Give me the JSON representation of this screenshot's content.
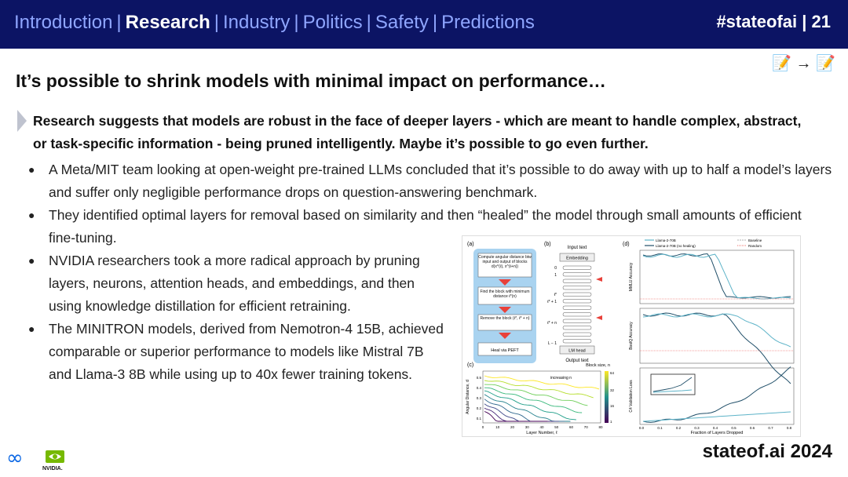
{
  "header": {
    "nav": [
      {
        "label": "Introduction",
        "active": false
      },
      {
        "label": "Research",
        "active": true
      },
      {
        "label": "Industry",
        "active": false
      },
      {
        "label": "Politics",
        "active": false
      },
      {
        "label": "Safety",
        "active": false
      },
      {
        "label": "Predictions",
        "active": false
      }
    ],
    "tag": "#stateofai | 21",
    "stamp": "📝 → 📝"
  },
  "slide": {
    "title": "It’s possible to shrink models with minimal impact on performance…",
    "summary": "Research suggests that models are robust in the face of deeper layers - which are meant to handle complex, abstract, or task-specific information - being pruned intelligently. Maybe it’s possible to go even further.",
    "bullets": [
      "A Meta/MIT team looking at open-weight pre-trained LLMs concluded that it’s possible to do away with up to half a model’s layers and suffer only negligible performance drops on question-answering benchmark.",
      "They identified optimal layers for removal based on similarity and then “healed” the model through small amounts of efficient fine-tuning.",
      "NVIDIA researchers took a more radical approach by pruning layers, neurons, attention heads, and embeddings, and then using knowledge distillation for efficient retraining.",
      "The MINITRON models, derived from Nemotron-4 15B, achieved comparable or superior performance to models like Mistral 7B and Llama-3 8B while using up to 40x fewer training tokens."
    ]
  },
  "figure": {
    "panel_a": {
      "tag": "(a)",
      "steps": [
        "Compute angular distance btw input and output of blocks d(x^(ℓ), x^(ℓ+n))",
        "Find the block with minimum distance ℓ*(n)",
        "Remove the block (ℓ*, ℓ* + n)",
        "Heal via PEFT"
      ]
    },
    "panel_b": {
      "tag": "(b)",
      "input": "Input text",
      "embedding": "Embedding",
      "lm_head": "LM head",
      "output": "Output text",
      "l0": "0",
      "l1": "1",
      "lstar": "ℓ*",
      "lstar1": "ℓ* + 1",
      "lstarn": "ℓ* + n",
      "lend": "L − 1"
    },
    "panel_c": {
      "tag": "(c)",
      "xlabel": "Layer Number, ℓ",
      "ylabel": "Angular Distance, d",
      "legend": "Block size, n",
      "annotation": "increasing n",
      "xticks": [
        "0",
        "10",
        "20",
        "30",
        "40",
        "50",
        "60",
        "70",
        "80"
      ],
      "yticks": [
        "0.1",
        "0.2",
        "0.3",
        "0.4",
        "0.5"
      ],
      "cticks": [
        "64",
        "32",
        "16",
        "1"
      ]
    },
    "panel_d": {
      "tag": "(d)",
      "legend": [
        "Llama-2-70B",
        "Llama-2-70B (no healing)",
        "Baseline",
        "Random"
      ],
      "ylabel_top": "MMLU Accuracy",
      "ylabel_mid": "BoolQ Accuracy",
      "ylabel_bot": "C4 Validation Loss",
      "xlabel": "Fraction of Layers Dropped",
      "xticks": [
        "0.0",
        "0.1",
        "0.2",
        "0.3",
        "0.4",
        "0.5",
        "0.6",
        "0.7",
        "0.8"
      ]
    }
  },
  "footer": {
    "meta_logo": "∞",
    "nvidia_label": "NVIDIA.",
    "brand": "stateof.ai 2024"
  },
  "colors": {
    "header_bg": "#0c1464",
    "nav_inactive": "#8fa6ff",
    "accent_red": "#e8413a",
    "panel_blue": "#a9d3f0",
    "series_teal": "#5db3c8",
    "series_dark": "#1f4e68"
  }
}
